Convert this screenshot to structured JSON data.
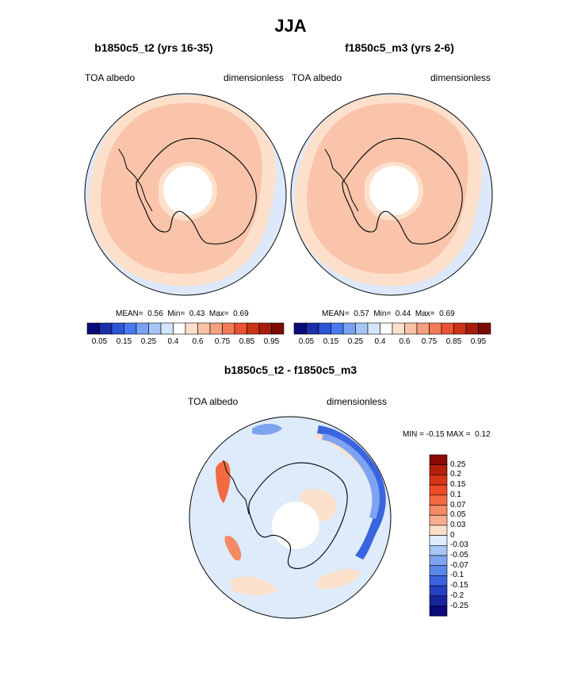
{
  "figure": {
    "title": "JJA",
    "maps_note": "polar stereographic maps of the Southern Hemisphere"
  },
  "chart_data": [
    {
      "type": "heatmap",
      "id": "left",
      "title": "b1850c5_t2 (yrs 16-35)",
      "variable": "TOA albedo",
      "units": "dimensionless",
      "stats": {
        "mean_label": "MEAN=",
        "mean": "0.56",
        "min_label": "Min=",
        "min": "0.43",
        "max_label": "Max=",
        "max": "0.69"
      },
      "colorbar": {
        "orientation": "horizontal",
        "levels": [
          "0.05",
          "0.15",
          "0.25",
          "0.4",
          "0.6",
          "0.75",
          "0.85",
          "0.95"
        ],
        "colors": [
          "#0a0a78",
          "#1a2ea8",
          "#2c55d8",
          "#4a78f0",
          "#79a2f5",
          "#a8c5f8",
          "#d3e6fc",
          "#ffffff",
          "#fde0cc",
          "#f9c1a6",
          "#f5a07f",
          "#f27a56",
          "#ea5330",
          "#cc3218",
          "#a61c0c",
          "#7a0c04"
        ]
      }
    },
    {
      "type": "heatmap",
      "id": "right",
      "title": "f1850c5_m3 (yrs 2-6)",
      "variable": "TOA albedo",
      "units": "dimensionless",
      "stats": {
        "mean_label": "MEAN=",
        "mean": "0.57",
        "min_label": "Min=",
        "min": "0.44",
        "max_label": "Max=",
        "max": "0.69"
      },
      "colorbar": {
        "orientation": "horizontal",
        "levels": [
          "0.05",
          "0.15",
          "0.25",
          "0.4",
          "0.6",
          "0.75",
          "0.85",
          "0.95"
        ],
        "colors": [
          "#0a0a78",
          "#1a2ea8",
          "#2c55d8",
          "#4a78f0",
          "#79a2f5",
          "#a8c5f8",
          "#d3e6fc",
          "#ffffff",
          "#fde0cc",
          "#f9c1a6",
          "#f5a07f",
          "#f27a56",
          "#ea5330",
          "#cc3218",
          "#a61c0c",
          "#7a0c04"
        ]
      }
    },
    {
      "type": "heatmap",
      "id": "diff",
      "title": "b1850c5_t2 - f1850c5_m3",
      "variable": "TOA albedo",
      "units": "dimensionless",
      "stats": {
        "min_label": "MIN =",
        "min": "-0.15",
        "max_label": "MAX =",
        "max": "0.12"
      },
      "colorbar": {
        "orientation": "vertical",
        "levels": [
          "0.25",
          "0.2",
          "0.15",
          "0.1",
          "0.07",
          "0.05",
          "0.03",
          "0",
          "-0.03",
          "-0.05",
          "-0.07",
          "-0.1",
          "-0.15",
          "-0.2",
          "-0.25"
        ],
        "colors": [
          "#8a0a05",
          "#b5200c",
          "#d83418",
          "#f04a28",
          "#f26a42",
          "#f58a64",
          "#f8ae8c",
          "#fde0cc",
          "#ddebfb",
          "#a9c6f5",
          "#7ea4f1",
          "#5a86ec",
          "#3a64e0",
          "#2440c2",
          "#14259c",
          "#0a0a78"
        ]
      }
    }
  ]
}
